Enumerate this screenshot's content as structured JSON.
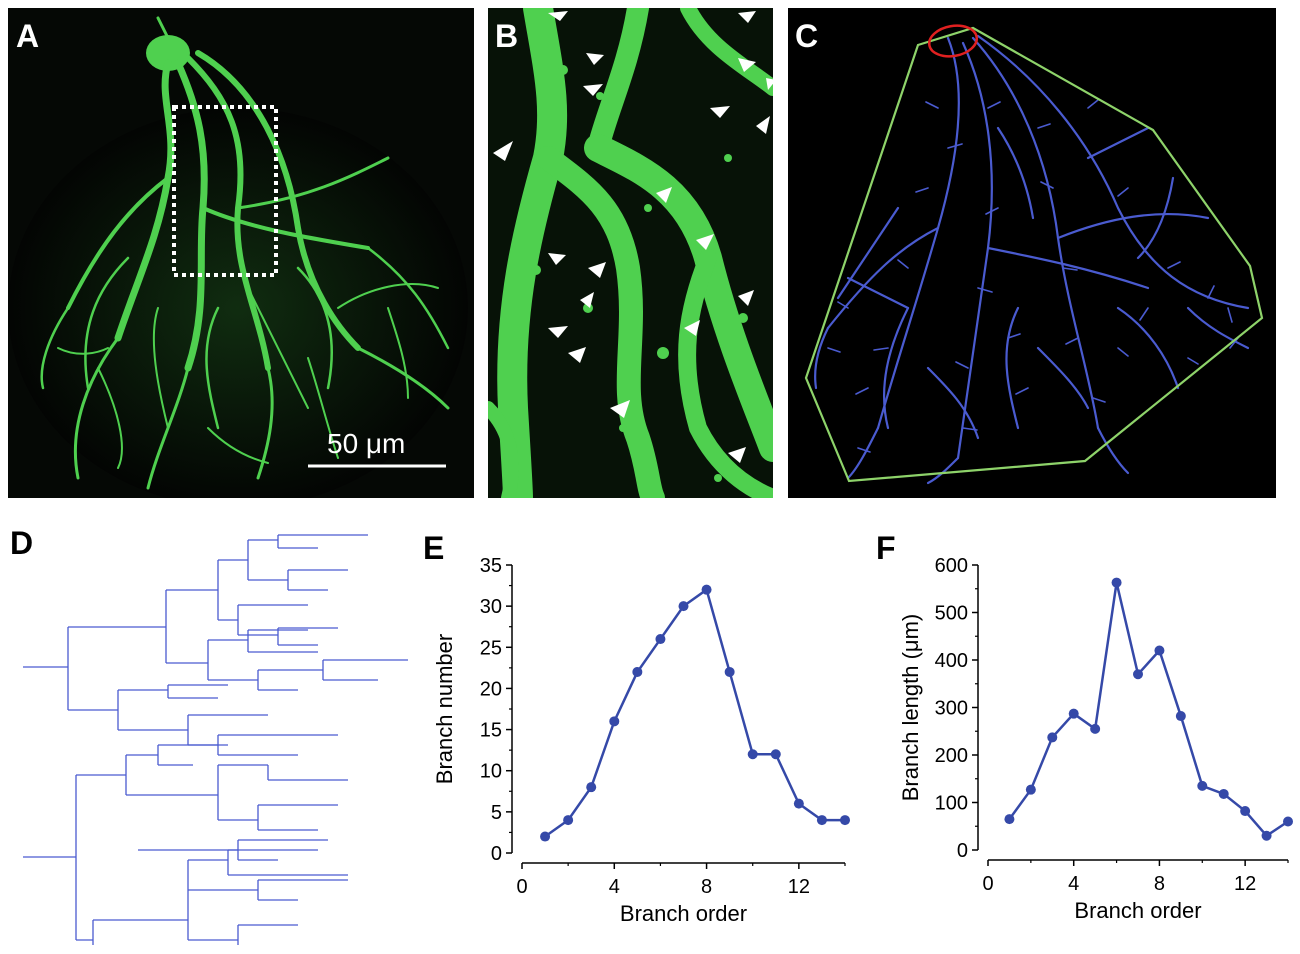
{
  "figure": {
    "panels": {
      "a": {
        "label": "A"
      },
      "b": {
        "label": "B"
      },
      "c": {
        "label": "C"
      },
      "d": {
        "label": "D"
      },
      "e": {
        "label": "E"
      },
      "f": {
        "label": "F"
      }
    },
    "scale_bar": {
      "text": "50 μm"
    },
    "colors": {
      "neuron_green": "#4fd04f",
      "trace_blue": "#4a5bd0",
      "hull_green": "#8ed36a",
      "soma_circle_red": "#e02020",
      "box_dotted": "#ffffff",
      "arrowhead": "#ffffff",
      "plot_blue": "#3549a8"
    }
  },
  "chart_data": [
    {
      "type": "line",
      "panel": "E",
      "xlabel": "Branch order",
      "ylabel": "Branch number",
      "x": [
        1,
        2,
        3,
        4,
        5,
        6,
        7,
        8,
        9,
        10,
        11,
        12,
        13,
        14
      ],
      "y": [
        2,
        4,
        8,
        16,
        22,
        26,
        30,
        32,
        22,
        12,
        12,
        6,
        4,
        4
      ],
      "xlim": [
        0,
        14
      ],
      "ylim": [
        0,
        35
      ],
      "xticks": [
        "0",
        "4",
        "8",
        "12"
      ],
      "yticks": [
        "0",
        "5",
        "10",
        "15",
        "20",
        "25",
        "30",
        "35"
      ],
      "grid": false,
      "legend": "none",
      "color": "#3549a8"
    },
    {
      "type": "line",
      "panel": "F",
      "xlabel": "Branch order",
      "ylabel": "Branch length (μm)",
      "x": [
        1,
        2,
        3,
        4,
        5,
        6,
        7,
        8,
        9,
        10,
        11,
        12,
        13,
        14
      ],
      "y": [
        65,
        127,
        237,
        287,
        255,
        563,
        370,
        420,
        282,
        135,
        118,
        82,
        30,
        60
      ],
      "xlim": [
        0,
        14
      ],
      "ylim": [
        0,
        600
      ],
      "xticks": [
        "0",
        "4",
        "8",
        "12"
      ],
      "yticks": [
        "0",
        "100",
        "200",
        "300",
        "400",
        "500",
        "600"
      ],
      "grid": false,
      "legend": "none",
      "color": "#3549a8"
    }
  ]
}
